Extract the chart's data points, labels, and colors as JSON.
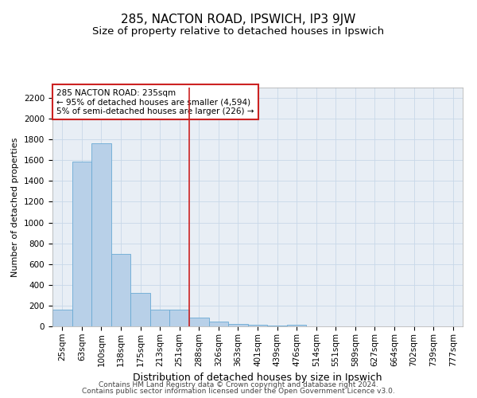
{
  "title1": "285, NACTON ROAD, IPSWICH, IP3 9JW",
  "title2": "Size of property relative to detached houses in Ipswich",
  "xlabel": "Distribution of detached houses by size in Ipswich",
  "ylabel": "Number of detached properties",
  "categories": [
    "25sqm",
    "63sqm",
    "100sqm",
    "138sqm",
    "175sqm",
    "213sqm",
    "251sqm",
    "288sqm",
    "326sqm",
    "363sqm",
    "401sqm",
    "439sqm",
    "476sqm",
    "514sqm",
    "551sqm",
    "589sqm",
    "627sqm",
    "664sqm",
    "702sqm",
    "739sqm",
    "777sqm"
  ],
  "values": [
    160,
    1590,
    1760,
    700,
    320,
    160,
    160,
    85,
    45,
    25,
    15,
    10,
    15,
    0,
    0,
    0,
    0,
    0,
    0,
    0,
    0
  ],
  "bar_color": "#b8d0e8",
  "bar_edge_color": "#6aaad4",
  "vline_color": "#cc2222",
  "vline_x": 6.5,
  "annotation_text": "285 NACTON ROAD: 235sqm\n← 95% of detached houses are smaller (4,594)\n5% of semi-detached houses are larger (226) →",
  "annotation_box_facecolor": "#ffffff",
  "annotation_box_edgecolor": "#cc2222",
  "grid_color": "#c8d8e8",
  "background_color": "#e8eef5",
  "footer_line1": "Contains HM Land Registry data © Crown copyright and database right 2024.",
  "footer_line2": "Contains public sector information licensed under the Open Government Licence v3.0.",
  "ylim": [
    0,
    2300
  ],
  "yticks": [
    0,
    200,
    400,
    600,
    800,
    1000,
    1200,
    1400,
    1600,
    1800,
    2000,
    2200
  ],
  "title1_fontsize": 11,
  "title2_fontsize": 9.5,
  "xlabel_fontsize": 9,
  "ylabel_fontsize": 8,
  "tick_fontsize": 7.5,
  "annot_fontsize": 7.5,
  "footer_fontsize": 6.5
}
